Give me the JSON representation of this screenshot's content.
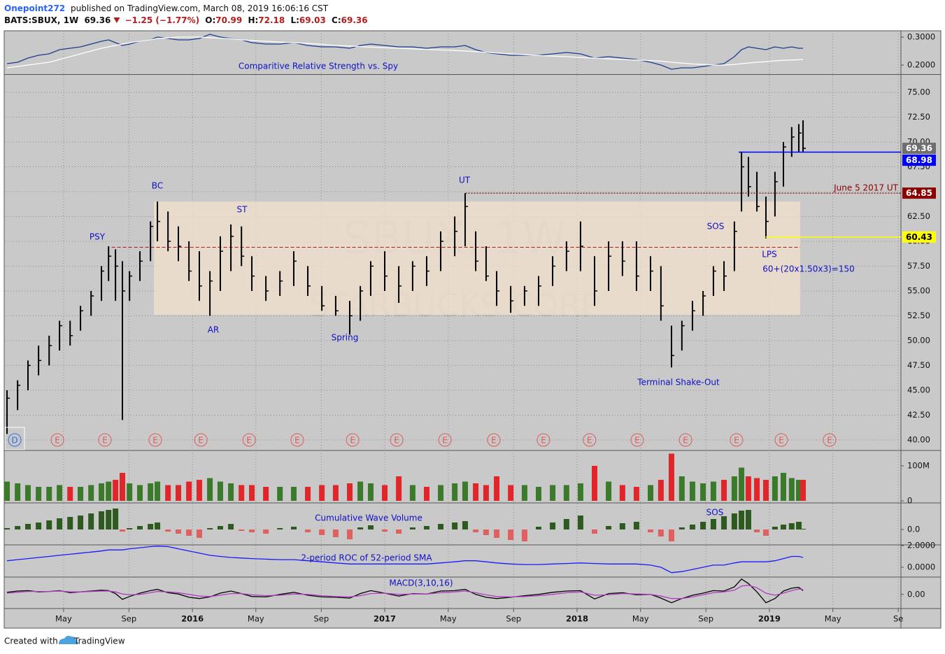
{
  "header": {
    "author": "Onepoint272",
    "published": "published on TradingView.com, March 08, 2019 16:06:16 CST",
    "symbol": "BATS:SBUX, 1W",
    "last": 69.36,
    "change": "−1.25 (−1.77%)",
    "ohlc": [
      {
        "label": "O:",
        "value": 70.99
      },
      {
        "label": "H:",
        "value": 72.18
      },
      {
        "label": "L:",
        "value": 69.03
      },
      {
        "label": "C:",
        "value": 69.36
      }
    ]
  },
  "footer": {
    "text": "Created with",
    "brand": "TradingView"
  },
  "chart_data": {
    "type": "ohlc",
    "watermark": [
      "SBUX, 1W",
      "STARBUCKS CORP"
    ],
    "xlim": [
      2015.025,
      2019.684
    ],
    "xticks": [
      {
        "value": 2015.33,
        "label": "May"
      },
      {
        "value": 2015.67,
        "label": "Sep"
      },
      2016,
      {
        "value": 2016.33,
        "label": "May"
      },
      {
        "value": 2016.67,
        "label": "Sep"
      },
      2017,
      {
        "value": 2017.33,
        "label": "May"
      },
      {
        "value": 2017.67,
        "label": "Sep"
      },
      2018,
      {
        "value": 2018.33,
        "label": "May"
      },
      {
        "value": 2018.67,
        "label": "Sep"
      },
      2019,
      {
        "value": 2019.33,
        "label": "May"
      },
      {
        "value": 2019.67,
        "label": "Se"
      }
    ],
    "ylim": [
      39.01,
      76.76
    ],
    "yticks": [
      {
        "value": 40,
        "label": "40.00"
      },
      {
        "value": 42.5,
        "label": "42.50"
      },
      {
        "value": 45,
        "label": "45.00"
      },
      {
        "value": 47.5,
        "label": "47.50"
      },
      {
        "value": 50,
        "label": "50.00"
      },
      {
        "value": 52.5,
        "label": "52.50"
      },
      {
        "value": 55,
        "label": "55.00"
      },
      {
        "value": 57.5,
        "label": "57.50"
      },
      {
        "value": 60,
        "label": "60.00"
      },
      {
        "value": 62.5,
        "label": "62.50"
      },
      {
        "value": 65,
        "label": "65.00"
      },
      {
        "value": 67.5,
        "label": "67.50"
      },
      {
        "value": 70,
        "label": "70.00"
      },
      {
        "value": 72.5,
        "label": "72.50"
      },
      {
        "value": 75,
        "label": "75.00"
      }
    ],
    "grid": true,
    "color": "#000000",
    "x": [
      2015.036,
      2015.091,
      2015.145,
      2015.2,
      2015.255,
      2015.309,
      2015.364,
      2015.418,
      2015.473,
      2015.527,
      2015.564,
      2015.6,
      2015.636,
      2015.673,
      2015.727,
      2015.782,
      2015.818,
      2015.873,
      2015.927,
      2015.982,
      2016.036,
      2016.091,
      2016.145,
      2016.2,
      2016.255,
      2016.309,
      2016.382,
      2016.455,
      2016.527,
      2016.6,
      2016.673,
      2016.745,
      2016.818,
      2016.873,
      2016.927,
      2017.0,
      2017.073,
      2017.145,
      2017.218,
      2017.291,
      2017.364,
      2017.418,
      2017.473,
      2017.527,
      2017.582,
      2017.655,
      2017.727,
      2017.8,
      2017.873,
      2017.945,
      2018.018,
      2018.091,
      2018.164,
      2018.236,
      2018.309,
      2018.382,
      2018.436,
      2018.491,
      2018.545,
      2018.6,
      2018.655,
      2018.709,
      2018.764,
      2018.818,
      2018.855,
      2018.891,
      2018.935,
      2018.982,
      2019.029,
      2019.073,
      2019.116,
      2019.153,
      2019.175
    ],
    "high": [
      45,
      46,
      48,
      49.5,
      50.5,
      52,
      52,
      53.5,
      55,
      57.5,
      59.5,
      59.2,
      58,
      57,
      59,
      62,
      64,
      63,
      61.5,
      60,
      59,
      57,
      60.5,
      61.7,
      61.5,
      58.5,
      56.5,
      57,
      59,
      57.5,
      55.5,
      54.5,
      54,
      55.5,
      58,
      59,
      57.5,
      58,
      58.5,
      61,
      62.5,
      64.85,
      61,
      59.5,
      57,
      55.5,
      55.5,
      56.5,
      58.5,
      60,
      62,
      58.5,
      60,
      60,
      60,
      58.5,
      57.5,
      51.5,
      52,
      54,
      55,
      57.5,
      58,
      62,
      68.98,
      68.5,
      67,
      64.5,
      67,
      70,
      71.5,
      71.8,
      72.18
    ],
    "low": [
      40.6,
      43,
      45,
      46.5,
      47.5,
      49,
      49.5,
      51,
      52.5,
      54,
      56,
      54,
      42,
      54,
      56,
      58,
      60,
      59,
      58,
      56,
      54,
      52.5,
      55,
      57,
      57.5,
      55,
      54,
      54.5,
      55.5,
      54.5,
      53,
      52.5,
      50.6,
      52,
      54.5,
      55,
      53.8,
      55,
      55.5,
      57,
      58.5,
      59.5,
      57,
      56,
      53.5,
      52.8,
      53.5,
      53.5,
      55.5,
      57,
      57,
      53.5,
      55,
      56.5,
      55,
      55,
      52,
      47.3,
      49,
      51,
      52.5,
      54.5,
      55,
      57,
      63,
      64.5,
      63,
      60.3,
      62.5,
      65.5,
      68.5,
      69,
      69.03
    ],
    "close": [
      44.2,
      45.5,
      47.5,
      48,
      49.5,
      51.5,
      50.5,
      53,
      54.5,
      57,
      58.5,
      57.5,
      55,
      56.5,
      58,
      61.5,
      62,
      60,
      59.5,
      57,
      55.5,
      56,
      59,
      60.5,
      58.5,
      56.5,
      55,
      56,
      58,
      55.5,
      53.5,
      53,
      52.5,
      55,
      57.5,
      56.5,
      55.5,
      57.5,
      57,
      60,
      61,
      63.5,
      58,
      56.5,
      55,
      54,
      55,
      55.5,
      57.5,
      59,
      59.5,
      55,
      58.5,
      58,
      56.5,
      57,
      53.5,
      48.5,
      51.5,
      53,
      54.5,
      57,
      56.5,
      61,
      67.5,
      65.5,
      63.5,
      62,
      66,
      69.5,
      70.5,
      70.9,
      69.36
    ],
    "range_box": {
      "x": [
        2015.8,
        2019.16
      ],
      "y": [
        52.6,
        64
      ],
      "color": "#f2e0cc"
    },
    "dashed_level": {
      "value": 59.4,
      "x": [
        2015.58,
        2019.16
      ],
      "color": "#b01818"
    },
    "levels": [
      {
        "value": 69.36,
        "color": "#6e6e6e",
        "text_color": "#ffffff"
      },
      {
        "value": 68.98,
        "color": "#0000ff",
        "text_color": "#ffffff",
        "line_from": 2018.84,
        "line_style": "solid"
      },
      {
        "value": 64.85,
        "color": "#8b0000",
        "text_color": "#ffffff",
        "line_from": 2017.42,
        "line_style": "dotted",
        "note": "June 5 2017 UT"
      },
      {
        "value": 60.43,
        "color": "#ffff00",
        "text_color": "#000000",
        "line_from": 2018.98,
        "line_style": "solid"
      }
    ],
    "annotations": [
      "PSY",
      "BC",
      "AR",
      "ST",
      "Spring",
      "UT",
      "SOS",
      "LPS",
      "60+(20x1.50x3)=150",
      "Terminal Shake-Out"
    ],
    "earnings": {
      "label": "E",
      "color": "#e05a5a",
      "x": [
        2015.298,
        2015.545,
        2015.807,
        2016.044,
        2016.295,
        2016.545,
        2016.833,
        2017.062,
        2017.313,
        2017.567,
        2017.825,
        2018.065,
        2018.313,
        2018.564,
        2018.829,
        2019.062,
        2019.313
      ]
    },
    "dividend": {
      "label": "D",
      "color": "#2f6fdf",
      "x": 2015.076
    },
    "indicators": [
      {
        "type": "line",
        "title": "Comparitive Relative Strength vs. Spy",
        "ylim": [
          0.1675,
          0.3225
        ],
        "yticks": [
          {
            "value": 0.3,
            "label": "0.3000"
          },
          {
            "value": 0.2,
            "label": "0.2000"
          }
        ],
        "series": [
          {
            "color": "#1d3b8f",
            "values": [
              0.205,
              0.21,
              0.225,
              0.235,
              0.24,
              0.255,
              0.26,
              0.265,
              0.275,
              0.285,
              0.29,
              0.28,
              0.27,
              0.275,
              0.285,
              0.29,
              0.3,
              0.295,
              0.29,
              0.29,
              0.295,
              0.31,
              0.3,
              0.295,
              0.29,
              0.28,
              0.275,
              0.275,
              0.28,
              0.27,
              0.265,
              0.265,
              0.26,
              0.27,
              0.275,
              0.27,
              0.265,
              0.265,
              0.26,
              0.265,
              0.265,
              0.27,
              0.255,
              0.245,
              0.24,
              0.235,
              0.235,
              0.235,
              0.24,
              0.245,
              0.24,
              0.225,
              0.23,
              0.225,
              0.22,
              0.21,
              0.2,
              0.185,
              0.19,
              0.19,
              0.195,
              0.2,
              0.205,
              0.23,
              0.255,
              0.265,
              0.26,
              0.255,
              0.265,
              0.26,
              0.265,
              0.26,
              0.26
            ]
          },
          {
            "color": "#ffffff",
            "values": [
              0.19,
              0.195,
              0.2,
              0.205,
              0.21,
              0.22,
              0.23,
              0.24,
              0.25,
              0.26,
              0.265,
              0.27,
              0.275,
              0.28,
              0.285,
              0.29,
              0.295,
              0.297,
              0.3,
              0.3,
              0.3,
              0.298,
              0.296,
              0.294,
              0.29,
              0.288,
              0.285,
              0.282,
              0.28,
              0.277,
              0.274,
              0.27,
              0.268,
              0.266,
              0.264,
              0.262,
              0.26,
              0.258,
              0.256,
              0.254,
              0.252,
              0.25,
              0.248,
              0.246,
              0.243,
              0.24,
              0.237,
              0.234,
              0.232,
              0.23,
              0.227,
              0.225,
              0.222,
              0.22,
              0.218,
              0.216,
              0.214,
              0.21,
              0.207,
              0.204,
              0.202,
              0.2,
              0.2,
              0.202,
              0.205,
              0.207,
              0.21,
              0.212,
              0.215,
              0.217,
              0.218,
              0.219,
              0.22
            ]
          }
        ]
      },
      {
        "type": "bar",
        "color_by": "close",
        "up_color": "#3b7a2a",
        "down_color": "#e0262b",
        "ylim": [
          -4000000,
          142000000
        ],
        "yticks": [
          {
            "value": 100000000,
            "label": "100M"
          },
          0
        ],
        "values": [
          55000000,
          50000000,
          45000000,
          40000000,
          40000000,
          45000000,
          40000000,
          40000000,
          45000000,
          50000000,
          55000000,
          60000000,
          80000000,
          50000000,
          45000000,
          50000000,
          55000000,
          45000000,
          45000000,
          55000000,
          60000000,
          65000000,
          55000000,
          50000000,
          45000000,
          45000000,
          40000000,
          40000000,
          40000000,
          40000000,
          45000000,
          45000000,
          50000000,
          55000000,
          50000000,
          45000000,
          70000000,
          45000000,
          40000000,
          45000000,
          50000000,
          55000000,
          50000000,
          45000000,
          70000000,
          45000000,
          45000000,
          40000000,
          45000000,
          45000000,
          50000000,
          100000000,
          55000000,
          45000000,
          40000000,
          45000000,
          60000000,
          135000000,
          70000000,
          55000000,
          50000000,
          55000000,
          60000000,
          70000000,
          95000000,
          70000000,
          65000000,
          60000000,
          70000000,
          80000000,
          65000000,
          60000000,
          60000000
        ]
      },
      {
        "type": "bar",
        "color_by": "sign",
        "title": "Cumulative Wave Volume",
        "note": "SOS",
        "up_color": "#2d5a1e",
        "down_color": "#e06060",
        "ylim": [
          -21,
          37
        ],
        "yticks": [
          {
            "value": 0,
            "label": "0.0"
          }
        ],
        "values": [
          2,
          5,
          8,
          10,
          13,
          16,
          18,
          20,
          23,
          26,
          28,
          30,
          -3,
          2,
          5,
          8,
          10,
          -3,
          -6,
          -9,
          -12,
          2,
          5,
          8,
          -2,
          -4,
          -6,
          2,
          4,
          -4,
          -8,
          -11,
          -14,
          3,
          6,
          -3,
          -6,
          3,
          5,
          8,
          10,
          12,
          -4,
          -8,
          -12,
          -15,
          -17,
          4,
          10,
          15,
          20,
          -6,
          5,
          9,
          11,
          -4,
          -10,
          -17,
          3,
          7,
          11,
          15,
          19,
          23,
          27,
          28,
          -4,
          -9,
          4,
          7,
          9,
          11,
          1
        ]
      },
      {
        "type": "line",
        "title": "2-period ROC of 52-period SMA",
        "ylim": [
          -0.84,
          2.0
        ],
        "yticks": [
          {
            "value": 2,
            "label": "2.0000"
          },
          {
            "value": 0,
            "label": "0.0000"
          }
        ],
        "series": [
          {
            "color": "#1a1aff",
            "values": [
              0.6,
              0.7,
              0.8,
              0.9,
              1.0,
              1.1,
              1.2,
              1.3,
              1.4,
              1.5,
              1.6,
              1.6,
              1.6,
              1.7,
              1.8,
              1.9,
              1.95,
              1.9,
              1.7,
              1.5,
              1.3,
              1.1,
              1.0,
              0.9,
              0.85,
              0.8,
              0.75,
              0.7,
              0.7,
              0.6,
              0.5,
              0.4,
              0.3,
              0.3,
              0.3,
              0.3,
              0.3,
              0.3,
              0.3,
              0.4,
              0.5,
              0.6,
              0.6,
              0.5,
              0.4,
              0.3,
              0.25,
              0.25,
              0.3,
              0.35,
              0.4,
              0.35,
              0.3,
              0.3,
              0.3,
              0.2,
              0,
              -0.5,
              -0.4,
              -0.2,
              0,
              0.2,
              0.2,
              0.4,
              0.5,
              0.5,
              0.5,
              0.5,
              0.6,
              0.8,
              1.0,
              1.0,
              0.9
            ]
          }
        ]
      },
      {
        "type": "line",
        "title": "MACD(3,10,16)",
        "ylim": [
          -3.4,
          4.0
        ],
        "yticks": [
          {
            "value": 0,
            "label": "0.00"
          }
        ],
        "series": [
          {
            "color": "#000000",
            "values": [
              0.5,
              0.8,
              0.9,
              0.6,
              0.7,
              0.9,
              0.4,
              0.6,
              0.8,
              1.0,
              0.9,
              0.2,
              -1.2,
              -0.5,
              0.3,
              0.9,
              1.2,
              0.4,
              0.1,
              -0.7,
              -1.0,
              -0.6,
              0.3,
              0.8,
              0.2,
              -0.5,
              -0.6,
              0,
              0.5,
              -0.2,
              -0.6,
              -0.7,
              -0.9,
              0.2,
              0.9,
              0.3,
              -0.4,
              0.2,
              0.1,
              0.8,
              0.9,
              1.2,
              0,
              -0.7,
              -1.0,
              -0.7,
              -0.3,
              0,
              0.5,
              0.8,
              0.9,
              -1.1,
              0.2,
              0.4,
              -0.1,
              0,
              -0.9,
              -2.0,
              -1.0,
              -0.2,
              0.3,
              0.9,
              0.8,
              1.8,
              3.7,
              2.6,
              0.6,
              -2.0,
              -1.0,
              0.8,
              1.5,
              1.7,
              0.9
            ]
          },
          {
            "color": "#b03cc0",
            "values": [
              0.3,
              0.5,
              0.7,
              0.7,
              0.7,
              0.8,
              0.6,
              0.6,
              0.7,
              0.8,
              0.8,
              0.6,
              0.1,
              -0.1,
              0,
              0.4,
              0.7,
              0.6,
              0.4,
              0,
              -0.4,
              -0.5,
              -0.2,
              0.2,
              0.2,
              -0.1,
              -0.3,
              -0.2,
              0.1,
              0,
              -0.3,
              -0.5,
              -0.6,
              -0.3,
              0.2,
              0.3,
              0,
              0.1,
              0.1,
              0.4,
              0.6,
              0.8,
              0.4,
              -0.1,
              -0.5,
              -0.6,
              -0.5,
              -0.3,
              0,
              0.4,
              0.6,
              -0.2,
              -0.1,
              0.2,
              0.1,
              0,
              -0.4,
              -1.0,
              -1.0,
              -0.6,
              -0.1,
              0.4,
              0.6,
              1.0,
              2.0,
              2.2,
              1.6,
              0.3,
              -0.2,
              0.3,
              0.9,
              1.3,
              1.2
            ]
          }
        ]
      }
    ]
  }
}
